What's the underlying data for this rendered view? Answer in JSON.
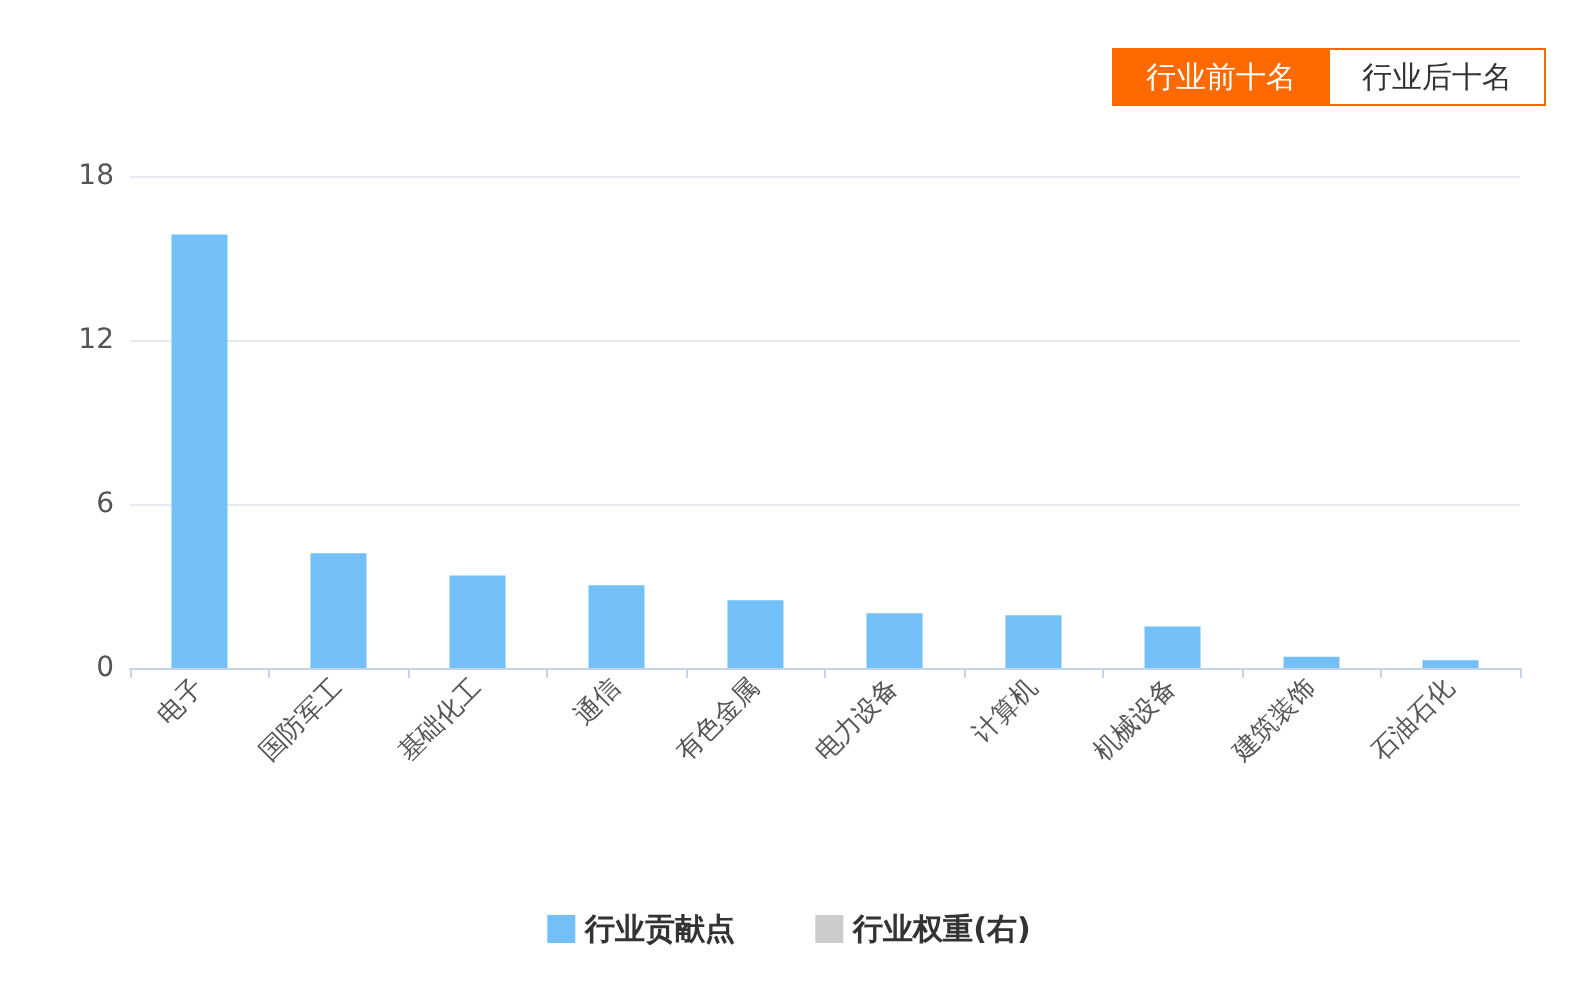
{
  "chart_data": {
    "type": "bar",
    "categories": [
      "电子",
      "国防军工",
      "基础化工",
      "通信",
      "有色金属",
      "电力设备",
      "计算机",
      "机械设备",
      "建筑装饰",
      "石油石化"
    ],
    "series": [
      {
        "name": "行业贡献点",
        "color": "#73c0f8",
        "values": [
          15.86,
          4.2,
          3.38,
          3.03,
          2.48,
          2.0,
          1.93,
          1.52,
          0.41,
          0.28
        ]
      },
      {
        "name": "行业权重(右)",
        "color": "#cccccc",
        "values": [
          null,
          null,
          null,
          null,
          null,
          null,
          null,
          null,
          null,
          null
        ]
      }
    ],
    "ylim": [
      0,
      18
    ],
    "yticks": [
      0,
      6,
      12,
      18
    ],
    "grid": "y",
    "legend": "bottom",
    "annotations": [
      "行业前十名",
      "行业后十名"
    ]
  }
}
